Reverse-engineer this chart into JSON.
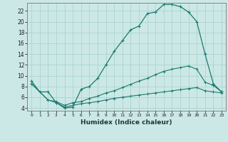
{
  "xlabel": "Humidex (Indice chaleur)",
  "bg_color": "#cce8e6",
  "grid_color": "#aad4d0",
  "line_color": "#1a7a6e",
  "xlim": [
    -0.5,
    23.5
  ],
  "ylim": [
    3.5,
    23.5
  ],
  "yticks": [
    4,
    6,
    8,
    10,
    12,
    14,
    16,
    18,
    20,
    22
  ],
  "xticks": [
    0,
    1,
    2,
    3,
    4,
    5,
    6,
    7,
    8,
    9,
    10,
    11,
    12,
    13,
    14,
    15,
    16,
    17,
    18,
    19,
    20,
    21,
    22,
    23
  ],
  "line1_x": [
    0,
    1,
    2,
    3,
    4,
    5,
    6,
    7,
    8,
    9,
    10,
    11,
    12,
    13,
    14,
    15,
    16,
    17,
    18,
    19,
    20,
    21,
    22,
    23
  ],
  "line1_y": [
    9,
    7,
    7,
    5,
    4,
    4.2,
    7.5,
    8,
    9.5,
    12,
    14.5,
    16.5,
    18.5,
    19.2,
    21.5,
    21.8,
    23.2,
    23.2,
    22.8,
    21.8,
    20,
    14,
    8.5,
    7
  ],
  "line2_x": [
    0,
    2,
    3,
    4,
    5,
    6,
    7,
    8,
    9,
    10,
    11,
    12,
    13,
    14,
    15,
    16,
    17,
    18,
    19,
    20,
    21,
    22,
    23
  ],
  "line2_y": [
    8.5,
    5.5,
    5.2,
    4.5,
    5.0,
    5.2,
    5.8,
    6.2,
    6.8,
    7.2,
    7.8,
    8.4,
    9.0,
    9.5,
    10.2,
    10.8,
    11.2,
    11.5,
    11.8,
    11.2,
    8.8,
    8.2,
    7.0
  ],
  "line3_x": [
    0,
    2,
    3,
    4,
    5,
    6,
    7,
    8,
    9,
    10,
    11,
    12,
    13,
    14,
    15,
    16,
    17,
    18,
    19,
    20,
    21,
    22,
    23
  ],
  "line3_y": [
    8.5,
    5.5,
    5.0,
    4.2,
    4.5,
    4.8,
    5.0,
    5.2,
    5.5,
    5.8,
    6.0,
    6.2,
    6.4,
    6.6,
    6.8,
    7.0,
    7.2,
    7.4,
    7.6,
    7.8,
    7.2,
    7.0,
    6.8
  ]
}
